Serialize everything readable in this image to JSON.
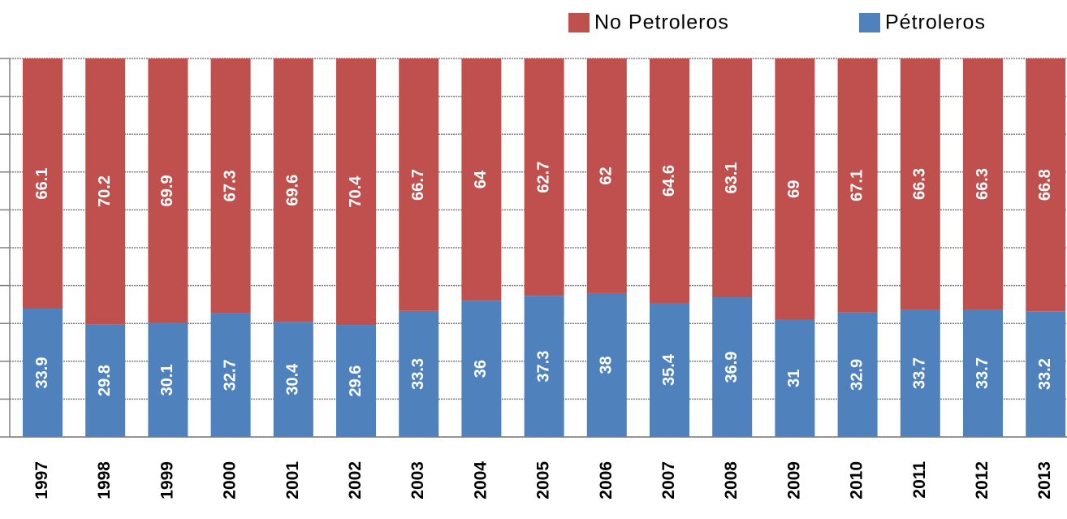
{
  "chart_data": {
    "type": "stacked_bar",
    "categories": [
      "1997",
      "1998",
      "1999",
      "2000",
      "2001",
      "2002",
      "2003",
      "2004",
      "2005",
      "2006",
      "2007",
      "2008",
      "2009",
      "2010",
      "2011",
      "2012",
      "2013"
    ],
    "series": [
      {
        "name": "Pétroleros",
        "color": "#4f81bd",
        "values": [
          33.9,
          29.8,
          30.1,
          32.7,
          30.4,
          29.6,
          33.3,
          36,
          37.3,
          38,
          35.4,
          36.9,
          31,
          32.9,
          33.7,
          33.7,
          33.2
        ]
      },
      {
        "name": "No Petroleros",
        "color": "#c0504d",
        "values": [
          66.1,
          70.2,
          69.9,
          67.3,
          69.6,
          70.4,
          66.7,
          64,
          62.7,
          62,
          64.6,
          63.1,
          69,
          67.1,
          66.3,
          66.3,
          66.8
        ]
      }
    ],
    "ylim": [
      0,
      100
    ],
    "yticks": [
      0,
      10,
      20,
      30,
      40,
      50,
      60,
      70,
      80,
      90,
      100
    ],
    "grid": true
  }
}
